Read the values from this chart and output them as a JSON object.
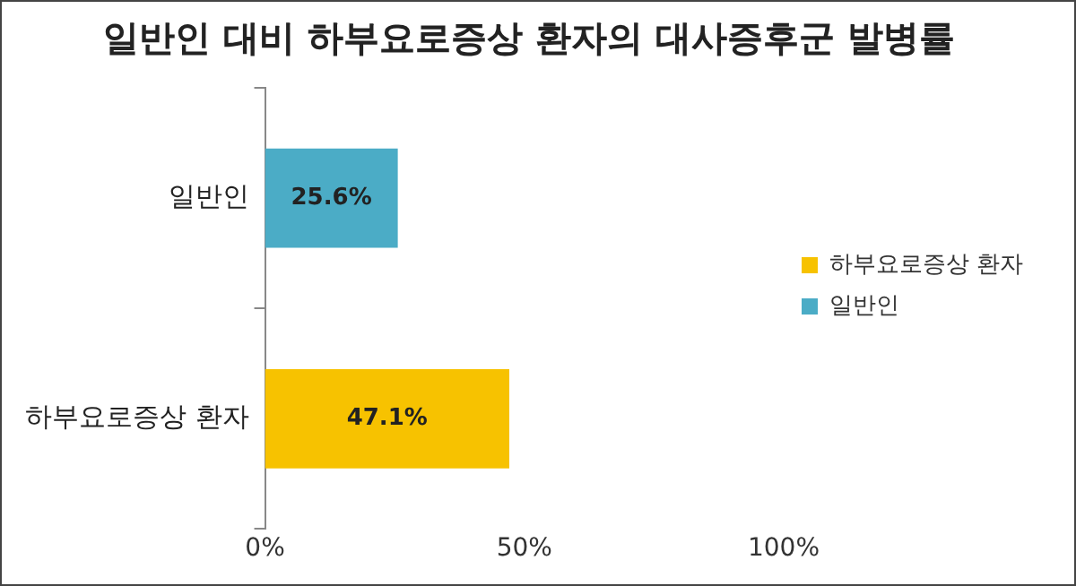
{
  "chart_data": {
    "type": "bar",
    "orientation": "horizontal",
    "title": "일반인 대비 하부요로증상 환자의 대사증후군 발병률",
    "categories": [
      "일반인",
      "하부요로증상 환자"
    ],
    "series": [
      {
        "name": "하부요로증상 환자",
        "color": "#f7c200",
        "values": [
          null,
          47.1
        ],
        "value_labels": [
          null,
          "47.1%"
        ]
      },
      {
        "name": "일반인",
        "color": "#4bacc6",
        "values": [
          25.6,
          null
        ],
        "value_labels": [
          "25.6%",
          null
        ]
      }
    ],
    "xlim": [
      0,
      100
    ],
    "xticks": [
      {
        "value": 0,
        "label": "0%"
      },
      {
        "value": 50,
        "label": "50%"
      },
      {
        "value": 100,
        "label": "100%"
      }
    ],
    "grid": false,
    "legend": "right"
  }
}
